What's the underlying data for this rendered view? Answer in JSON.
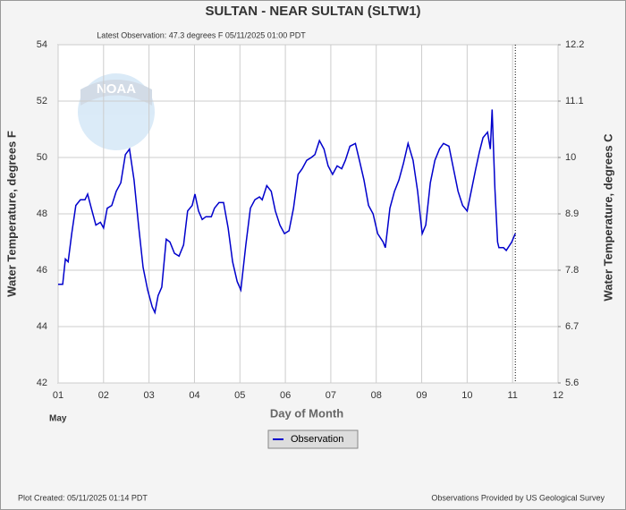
{
  "chart_data": {
    "type": "line",
    "title": "SULTAN - NEAR SULTAN  (SLTW1)",
    "subtitle": "Latest Observation: 47.3 degrees F 05/11/2025 01:00 PDT",
    "logo_text": "NOAA",
    "ylabel": "Water Temperature, degrees F",
    "y2label": "Water Temperature, degrees C",
    "xlabel": "Day of Month",
    "month_label": "May",
    "footer_left": "Plot Created: 05/11/2025 01:14 PDT",
    "footer_right": "Observations Provided by US Geological Survey",
    "grid": true,
    "xlim": [
      1,
      12
    ],
    "xticks": [
      {
        "value": 1,
        "label": "01"
      },
      {
        "value": 2,
        "label": "02"
      },
      {
        "value": 3,
        "label": "03"
      },
      {
        "value": 4,
        "label": "04"
      },
      {
        "value": 5,
        "label": "05"
      },
      {
        "value": 6,
        "label": "06"
      },
      {
        "value": 7,
        "label": "07"
      },
      {
        "value": 8,
        "label": "08"
      },
      {
        "value": 9,
        "label": "09"
      },
      10,
      11,
      12
    ],
    "ylim": [
      42,
      54
    ],
    "yticks": [
      42,
      44,
      46,
      48,
      50,
      52,
      54
    ],
    "y2lim": [
      5.6,
      12.2
    ],
    "y2ticks": [
      5.6,
      6.7,
      7.8,
      8.9,
      10,
      11.1,
      12.2
    ],
    "x": [
      1.0,
      1.1,
      1.16,
      1.22,
      1.3,
      1.39,
      1.49,
      1.59,
      1.65,
      1.73,
      1.83,
      1.93,
      2.0,
      2.08,
      2.18,
      2.28,
      2.38,
      2.48,
      2.57,
      2.67,
      2.77,
      2.87,
      2.97,
      3.07,
      3.13,
      3.2,
      3.28,
      3.38,
      3.46,
      3.56,
      3.66,
      3.76,
      3.85,
      3.95,
      4.01,
      4.09,
      4.17,
      4.25,
      4.37,
      4.44,
      4.54,
      4.64,
      4.74,
      4.84,
      4.94,
      5.02,
      5.13,
      5.23,
      5.33,
      5.43,
      5.49,
      5.59,
      5.69,
      5.78,
      5.88,
      5.98,
      6.08,
      6.18,
      6.28,
      6.37,
      6.47,
      6.57,
      6.65,
      6.75,
      6.85,
      6.94,
      7.04,
      7.14,
      7.24,
      7.32,
      7.42,
      7.54,
      7.63,
      7.73,
      7.83,
      7.93,
      8.03,
      8.15,
      8.2,
      8.3,
      8.4,
      8.5,
      8.6,
      8.7,
      8.81,
      8.91,
      9.01,
      9.09,
      9.19,
      9.29,
      9.39,
      9.48,
      9.6,
      9.7,
      9.8,
      9.9,
      10.0,
      10.09,
      10.19,
      10.27,
      10.35,
      10.45,
      10.51,
      10.55,
      10.61,
      10.67,
      10.7,
      10.8,
      10.86,
      10.98,
      11.06
    ],
    "series": [
      {
        "name": "Observation",
        "color": "#0000cc",
        "values": [
          45.5,
          45.5,
          46.4,
          46.3,
          47.3,
          48.3,
          48.5,
          48.5,
          48.7,
          48.2,
          47.6,
          47.7,
          47.5,
          48.2,
          48.3,
          48.8,
          49.1,
          50.1,
          50.3,
          49.2,
          47.6,
          46.1,
          45.3,
          44.7,
          44.5,
          45.1,
          45.4,
          47.1,
          47.0,
          46.6,
          46.5,
          46.9,
          48.1,
          48.3,
          48.7,
          48.1,
          47.8,
          47.9,
          47.9,
          48.2,
          48.4,
          48.4,
          47.5,
          46.3,
          45.6,
          45.3,
          46.9,
          48.2,
          48.5,
          48.6,
          48.5,
          49.0,
          48.8,
          48.1,
          47.6,
          47.3,
          47.4,
          48.2,
          49.4,
          49.6,
          49.9,
          50.0,
          50.1,
          50.6,
          50.3,
          49.7,
          49.4,
          49.7,
          49.6,
          49.9,
          50.4,
          50.5,
          49.9,
          49.2,
          48.3,
          48.0,
          47.3,
          47.0,
          46.8,
          48.2,
          48.8,
          49.2,
          49.8,
          50.5,
          49.9,
          48.8,
          47.3,
          47.6,
          49.1,
          49.9,
          50.3,
          50.5,
          50.4,
          49.6,
          48.8,
          48.3,
          48.1,
          48.8,
          49.6,
          50.2,
          50.7,
          50.9,
          50.3,
          51.7,
          48.9,
          47.0,
          46.8,
          46.8,
          46.7,
          47.0,
          47.3
        ]
      }
    ]
  }
}
